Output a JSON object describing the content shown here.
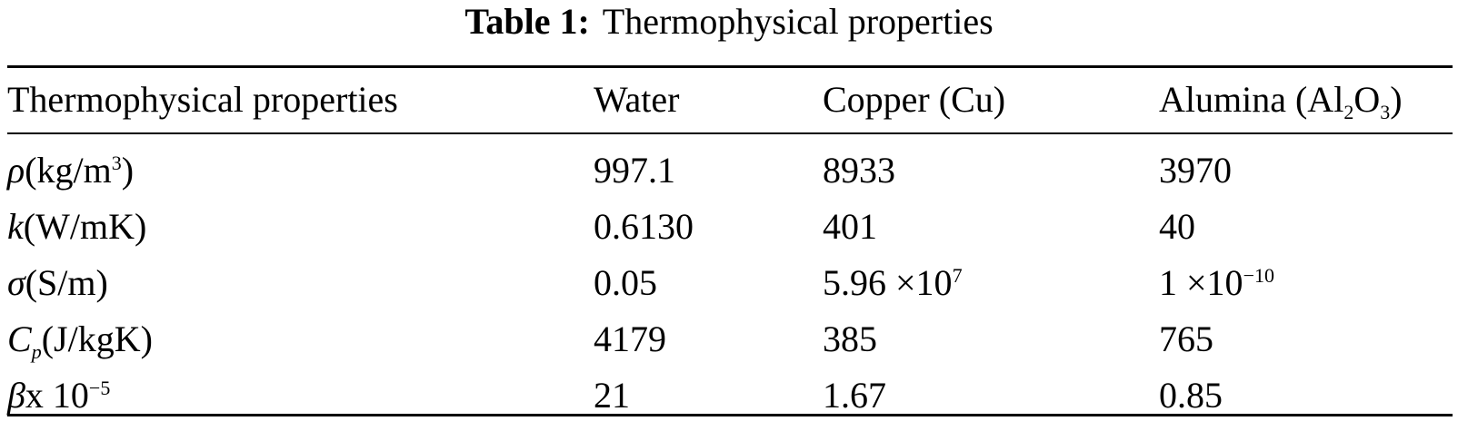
{
  "caption": {
    "label": "Table 1:",
    "text": "Thermophysical properties"
  },
  "table": {
    "headers": {
      "property": "Thermophysical properties",
      "water": "Water",
      "copper": "Copper (Cu)",
      "alumina_prefix": "Alumina (Al",
      "alumina_sub1": "2",
      "alumina_mid": "O",
      "alumina_sub2": "3",
      "alumina_suffix": ")"
    },
    "rows": [
      {
        "symbol": "ρ",
        "unit_prefix": "(kg/m",
        "unit_sup": "3",
        "unit_suffix": ")",
        "water": "997.1",
        "copper": "8933",
        "alumina": "3970"
      },
      {
        "symbol": "k",
        "unit": "(W/mK)",
        "water": "0.6130",
        "copper": "401",
        "alumina": "40"
      },
      {
        "symbol": "σ",
        "unit": "(S/m)",
        "water": "0.05",
        "copper_base": "5.96 ×10",
        "copper_exp": "7",
        "alumina_base": "1 ×10",
        "alumina_exp": "−10"
      },
      {
        "symbol": "C",
        "symbol_sub": "p",
        "unit": "(J/kgK)",
        "water": "4179",
        "copper": "385",
        "alumina": "765"
      },
      {
        "symbol": "β",
        "unit_base": "x 10",
        "unit_exp": "−5",
        "water": "21",
        "copper": "1.67",
        "alumina": "0.85"
      }
    ]
  }
}
